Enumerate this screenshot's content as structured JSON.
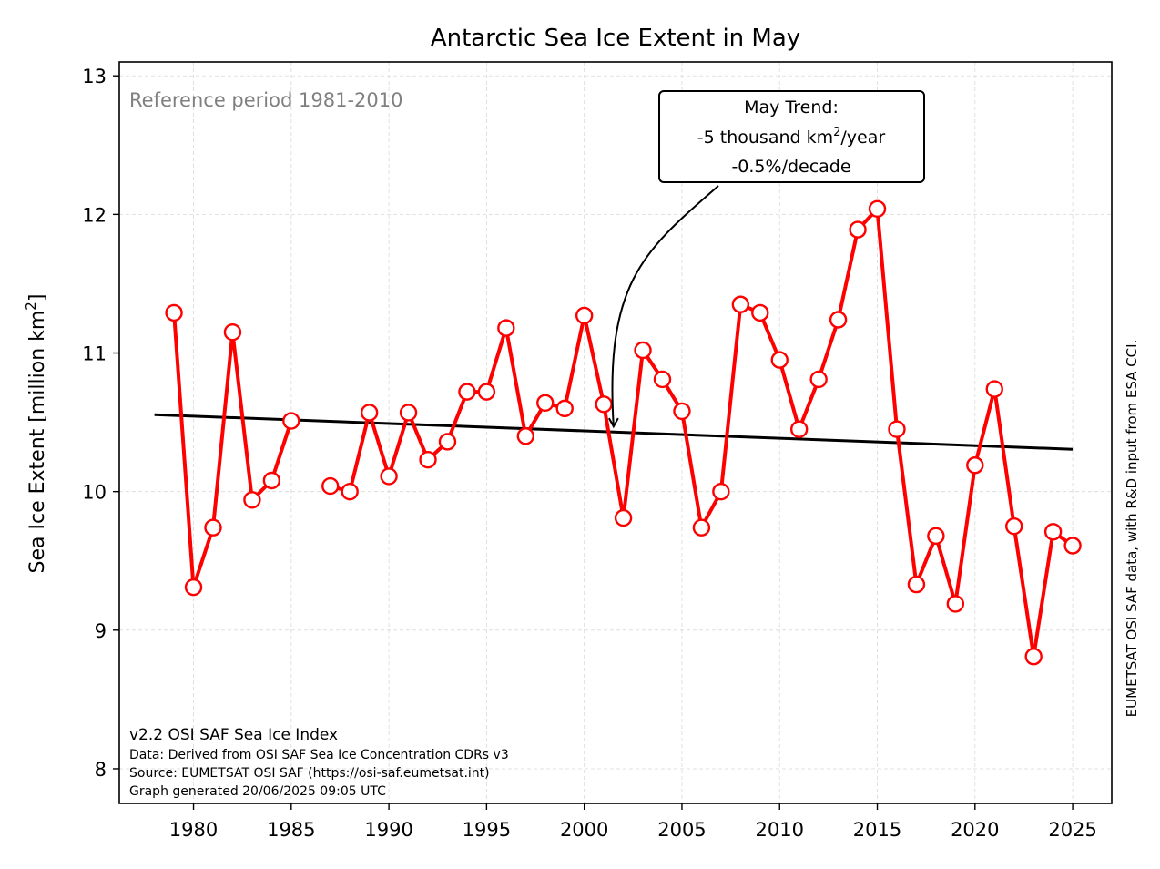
{
  "chart_data": {
    "type": "line",
    "title": "Antarctic Sea Ice Extent in May",
    "ylabel": "Sea Ice Extent [million km",
    "ylabel_sup": "2",
    "ylabel_close": "]",
    "xlabel": "",
    "xlim": [
      1976.2,
      2027.0
    ],
    "ylim": [
      7.75,
      13.1
    ],
    "grid": true,
    "x_ticks": [
      1980,
      1985,
      1990,
      1995,
      2000,
      2005,
      2010,
      2015,
      2020,
      2025
    ],
    "y_ticks": [
      8,
      9,
      10,
      11,
      12,
      13
    ],
    "reference_note": "Reference period 1981-2010",
    "series": [
      {
        "color": "#ff0000",
        "segments": [
          {
            "x": [
              1979,
              1980,
              1981,
              1982,
              1983,
              1984,
              1985
            ],
            "y": [
              11.29,
              9.31,
              9.74,
              11.15,
              9.94,
              10.08,
              10.51
            ]
          },
          {
            "x": [
              1987,
              1988,
              1989,
              1990,
              1991,
              1992,
              1993,
              1994,
              1995,
              1996,
              1997,
              1998,
              1999,
              2000,
              2001,
              2002,
              2003,
              2004,
              2005,
              2006,
              2007,
              2008,
              2009,
              2010,
              2011,
              2012,
              2013,
              2014,
              2015,
              2016,
              2017,
              2018,
              2019,
              2020,
              2021,
              2022,
              2023,
              2024,
              2025
            ],
            "y": [
              10.04,
              10.0,
              10.57,
              10.11,
              10.57,
              10.23,
              10.36,
              10.72,
              10.72,
              11.18,
              10.4,
              10.64,
              10.6,
              11.27,
              10.63,
              9.81,
              11.02,
              10.81,
              10.58,
              9.74,
              10.0,
              11.35,
              11.29,
              10.95,
              10.45,
              10.81,
              11.24,
              11.89,
              12.04,
              10.45,
              9.33,
              9.68,
              9.19,
              10.19,
              10.74,
              9.75,
              8.81,
              9.71,
              9.61
            ]
          }
        ]
      }
    ],
    "trend": {
      "color": "#000000",
      "x": [
        1978,
        2025
      ],
      "y": [
        10.555,
        10.305
      ]
    },
    "annotation": {
      "line1": "May Trend:",
      "line2_pre": "-5 thousand km",
      "line2_sup": "2",
      "line2_post": "/year",
      "line3": "-0.5%/decade",
      "arrow_target": [
        2001.5,
        10.47
      ]
    },
    "footer": {
      "line1": "v2.2 OSI SAF Sea Ice Index",
      "line2": "Data: Derived from OSI SAF Sea Ice Concentration CDRs v3",
      "line3": "Source: EUMETSAT OSI SAF (https://osi-saf.eumetsat.int)",
      "line4": "Graph generated 20/06/2025 09:05 UTC"
    },
    "side_note": "EUMETSAT OSI SAF data, with R&D input from ESA CCI."
  }
}
